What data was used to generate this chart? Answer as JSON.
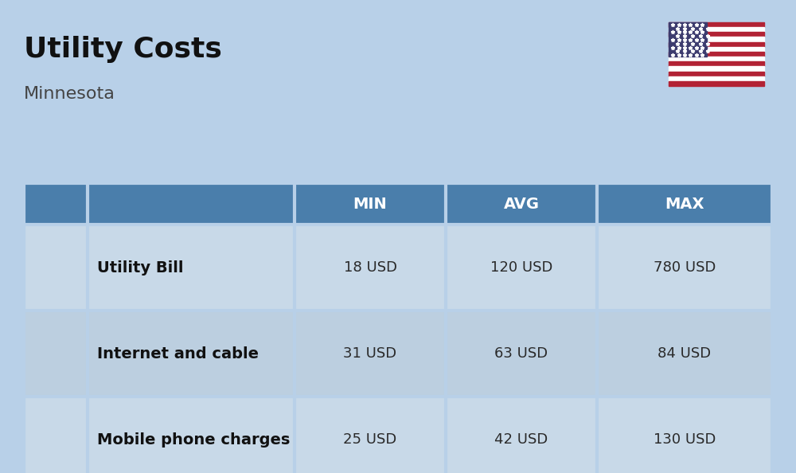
{
  "title": "Utility Costs",
  "subtitle": "Minnesota",
  "background_color": "#b8d0e8",
  "header_bg_color": "#4a7eab",
  "header_text_color": "#ffffff",
  "row_bg_color_odd": "#c8d9e8",
  "row_bg_color_even": "#bccfe0",
  "cell_text_color": "#2a2a2a",
  "label_text_color": "#111111",
  "title_color": "#111111",
  "subtitle_color": "#444444",
  "columns": [
    "MIN",
    "AVG",
    "MAX"
  ],
  "rows": [
    {
      "label": "Utility Bill",
      "min": "18 USD",
      "avg": "120 USD",
      "max": "780 USD"
    },
    {
      "label": "Internet and cable",
      "min": "31 USD",
      "avg": "63 USD",
      "max": "84 USD"
    },
    {
      "label": "Mobile phone charges",
      "min": "25 USD",
      "avg": "42 USD",
      "max": "130 USD"
    }
  ],
  "title_fontsize": 26,
  "subtitle_fontsize": 16,
  "header_fontsize": 14,
  "cell_fontsize": 13,
  "label_fontsize": 14,
  "separator_color": "#b8d0e8"
}
